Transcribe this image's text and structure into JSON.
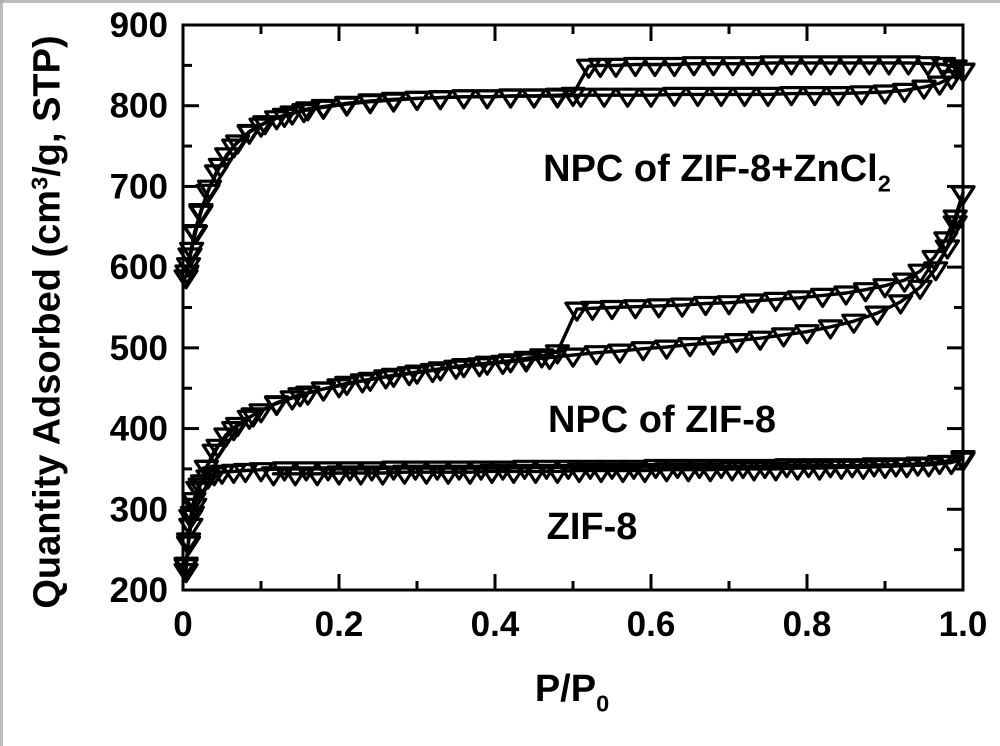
{
  "figure": {
    "background": "#ffffff",
    "ink_color": "#000000",
    "edge_artifact_color": "#a6a6a6"
  },
  "chart_data": {
    "type": "line",
    "title": "",
    "xlabel": "P/P0",
    "ylabel": "Quantity Adsorbed (cm3/g, STP)",
    "axis_titles": {
      "x_main": "P/P",
      "x_sub": "0",
      "y_prefix": "Quantity Adsorbed (cm",
      "y_sup": "3",
      "y_suffix": "/g, STP)"
    },
    "xlim": [
      0,
      1.0
    ],
    "ylim": [
      200,
      900
    ],
    "grid": false,
    "legend_position": "none (inline text annotations)",
    "marker": "open-triangle-down",
    "x_major_ticks": [
      0,
      0.2,
      0.4,
      0.6,
      0.8,
      1.0
    ],
    "x_major_labels": [
      "0",
      "0.2",
      "0.4",
      "0.6",
      "0.8",
      "1.0"
    ],
    "x_minor_ticks": [
      0.1,
      0.3,
      0.5,
      0.7,
      0.9
    ],
    "y_major_ticks": [
      200,
      300,
      400,
      500,
      600,
      700,
      800,
      900
    ],
    "y_major_labels": [
      "200",
      "300",
      "400",
      "500",
      "600",
      "700",
      "800",
      "900"
    ],
    "y_minor_ticks": [
      250,
      350,
      450,
      550,
      650,
      750,
      850
    ],
    "annotations": {
      "top": {
        "main": "NPC of ZIF-8+ZnCl",
        "sub": "2"
      },
      "middle": {
        "main": "NPC of ZIF-8",
        "sub": ""
      },
      "bottom": {
        "main": "ZIF-8",
        "sub": ""
      }
    },
    "series": [
      {
        "id": "npc-zncl2-adsorption",
        "name": "NPC of ZIF-8+ZnCl2 adsorption",
        "points": [
          [
            0.004,
            588
          ],
          [
            0.007,
            603
          ],
          [
            0.011,
            622
          ],
          [
            0.016,
            643
          ],
          [
            0.023,
            668
          ],
          [
            0.032,
            694
          ],
          [
            0.043,
            718
          ],
          [
            0.056,
            739
          ],
          [
            0.07,
            755
          ],
          [
            0.085,
            767
          ],
          [
            0.1,
            776
          ],
          [
            0.12,
            785
          ],
          [
            0.14,
            791
          ],
          [
            0.16,
            796
          ],
          [
            0.18,
            799
          ],
          [
            0.21,
            803
          ],
          [
            0.24,
            806
          ],
          [
            0.27,
            808
          ],
          [
            0.3,
            809
          ],
          [
            0.33,
            810
          ],
          [
            0.36,
            811
          ],
          [
            0.39,
            811
          ],
          [
            0.42,
            812
          ],
          [
            0.45,
            812
          ],
          [
            0.48,
            812
          ],
          [
            0.51,
            813
          ],
          [
            0.54,
            813
          ],
          [
            0.57,
            813
          ],
          [
            0.6,
            813
          ],
          [
            0.63,
            814
          ],
          [
            0.66,
            814
          ],
          [
            0.69,
            814
          ],
          [
            0.72,
            814
          ],
          [
            0.75,
            814
          ],
          [
            0.78,
            815
          ],
          [
            0.81,
            815
          ],
          [
            0.84,
            815
          ],
          [
            0.87,
            816
          ],
          [
            0.9,
            817
          ],
          [
            0.925,
            819
          ],
          [
            0.95,
            823
          ],
          [
            0.97,
            828
          ],
          [
            0.985,
            835
          ],
          [
            1.0,
            844
          ]
        ]
      },
      {
        "id": "npc-zncl2-desorption",
        "name": "NPC of ZIF-8+ZnCl2 desorption",
        "points": [
          [
            1.0,
            844
          ],
          [
            0.99,
            848
          ],
          [
            0.975,
            851
          ],
          [
            0.955,
            852
          ],
          [
            0.93,
            853
          ],
          [
            0.905,
            853
          ],
          [
            0.88,
            853
          ],
          [
            0.855,
            853
          ],
          [
            0.83,
            853
          ],
          [
            0.805,
            853
          ],
          [
            0.78,
            853
          ],
          [
            0.755,
            853
          ],
          [
            0.73,
            852
          ],
          [
            0.705,
            852
          ],
          [
            0.68,
            852
          ],
          [
            0.655,
            852
          ],
          [
            0.63,
            851
          ],
          [
            0.605,
            851
          ],
          [
            0.58,
            851
          ],
          [
            0.555,
            850
          ],
          [
            0.535,
            850
          ],
          [
            0.52,
            849
          ],
          [
            0.5,
            814
          ],
          [
            0.48,
            813
          ],
          [
            0.45,
            812
          ],
          [
            0.42,
            812
          ],
          [
            0.39,
            811
          ],
          [
            0.36,
            811
          ],
          [
            0.33,
            810
          ],
          [
            0.3,
            809
          ],
          [
            0.27,
            807
          ],
          [
            0.24,
            805
          ],
          [
            0.21,
            802
          ],
          [
            0.18,
            798
          ],
          [
            0.155,
            794
          ],
          [
            0.13,
            788
          ],
          [
            0.105,
            779
          ],
          [
            0.085,
            768
          ],
          [
            0.065,
            750
          ],
          [
            0.048,
            726
          ],
          [
            0.034,
            699
          ],
          [
            0.023,
            670
          ],
          [
            0.015,
            644
          ],
          [
            0.009,
            615
          ],
          [
            0.005,
            594
          ]
        ]
      },
      {
        "id": "npc-zif8-adsorption",
        "name": "NPC of ZIF-8 adsorption",
        "points": [
          [
            0.004,
            230
          ],
          [
            0.007,
            258
          ],
          [
            0.01,
            280
          ],
          [
            0.015,
            305
          ],
          [
            0.022,
            330
          ],
          [
            0.03,
            352
          ],
          [
            0.04,
            372
          ],
          [
            0.055,
            392
          ],
          [
            0.07,
            405
          ],
          [
            0.085,
            414
          ],
          [
            0.1,
            422
          ],
          [
            0.12,
            431
          ],
          [
            0.14,
            438
          ],
          [
            0.16,
            444
          ],
          [
            0.18,
            449
          ],
          [
            0.2,
            453
          ],
          [
            0.23,
            459
          ],
          [
            0.26,
            464
          ],
          [
            0.29,
            468
          ],
          [
            0.32,
            472
          ],
          [
            0.35,
            476
          ],
          [
            0.38,
            479
          ],
          [
            0.41,
            482
          ],
          [
            0.44,
            485
          ],
          [
            0.47,
            488
          ],
          [
            0.5,
            491
          ],
          [
            0.53,
            494
          ],
          [
            0.56,
            496
          ],
          [
            0.59,
            499
          ],
          [
            0.62,
            501
          ],
          [
            0.65,
            504
          ],
          [
            0.68,
            506
          ],
          [
            0.71,
            509
          ],
          [
            0.74,
            512
          ],
          [
            0.77,
            516
          ],
          [
            0.8,
            520
          ],
          [
            0.83,
            526
          ],
          [
            0.86,
            533
          ],
          [
            0.89,
            543
          ],
          [
            0.92,
            557
          ],
          [
            0.945,
            575
          ],
          [
            0.965,
            598
          ],
          [
            0.98,
            625
          ],
          [
            0.99,
            655
          ],
          [
            1.0,
            692
          ]
        ]
      },
      {
        "id": "npc-zif8-desorption",
        "name": "NPC of ZIF-8 desorption",
        "points": [
          [
            1.0,
            692
          ],
          [
            0.99,
            662
          ],
          [
            0.978,
            635
          ],
          [
            0.963,
            612
          ],
          [
            0.945,
            595
          ],
          [
            0.925,
            584
          ],
          [
            0.9,
            577
          ],
          [
            0.875,
            572
          ],
          [
            0.85,
            568
          ],
          [
            0.82,
            565
          ],
          [
            0.79,
            562
          ],
          [
            0.76,
            560
          ],
          [
            0.73,
            558
          ],
          [
            0.7,
            556
          ],
          [
            0.67,
            555
          ],
          [
            0.64,
            553
          ],
          [
            0.61,
            552
          ],
          [
            0.58,
            551
          ],
          [
            0.55,
            550
          ],
          [
            0.525,
            549
          ],
          [
            0.505,
            548
          ],
          [
            0.48,
            495
          ],
          [
            0.46,
            490
          ],
          [
            0.44,
            487
          ],
          [
            0.42,
            484
          ],
          [
            0.39,
            481
          ],
          [
            0.36,
            478
          ],
          [
            0.33,
            474
          ],
          [
            0.3,
            470
          ],
          [
            0.27,
            466
          ],
          [
            0.24,
            461
          ],
          [
            0.21,
            456
          ],
          [
            0.18,
            449
          ],
          [
            0.15,
            442
          ],
          [
            0.12,
            432
          ],
          [
            0.09,
            417
          ],
          [
            0.065,
            400
          ],
          [
            0.045,
            378
          ],
          [
            0.03,
            352
          ],
          [
            0.02,
            325
          ],
          [
            0.012,
            295
          ],
          [
            0.007,
            262
          ],
          [
            0.004,
            232
          ]
        ]
      },
      {
        "id": "zif8-adsorption",
        "name": "ZIF-8 adsorption",
        "points": [
          [
            0.004,
            224
          ],
          [
            0.007,
            262
          ],
          [
            0.01,
            291
          ],
          [
            0.014,
            312
          ],
          [
            0.019,
            326
          ],
          [
            0.025,
            334
          ],
          [
            0.032,
            340
          ],
          [
            0.04,
            344
          ],
          [
            0.05,
            346
          ],
          [
            0.065,
            347
          ],
          [
            0.08,
            348
          ],
          [
            0.1,
            349
          ],
          [
            0.13,
            350
          ],
          [
            0.158,
            350
          ],
          [
            0.186,
            350
          ],
          [
            0.214,
            350
          ],
          [
            0.242,
            350
          ],
          [
            0.27,
            351
          ],
          [
            0.298,
            351
          ],
          [
            0.326,
            351
          ],
          [
            0.354,
            351
          ],
          [
            0.382,
            351
          ],
          [
            0.41,
            351
          ],
          [
            0.438,
            352
          ],
          [
            0.466,
            352
          ],
          [
            0.494,
            352
          ],
          [
            0.522,
            352
          ],
          [
            0.55,
            352
          ],
          [
            0.578,
            352
          ],
          [
            0.606,
            353
          ],
          [
            0.634,
            353
          ],
          [
            0.662,
            353
          ],
          [
            0.69,
            353
          ],
          [
            0.718,
            353
          ],
          [
            0.746,
            353
          ],
          [
            0.774,
            354
          ],
          [
            0.802,
            354
          ],
          [
            0.83,
            354
          ],
          [
            0.858,
            354
          ],
          [
            0.886,
            355
          ],
          [
            0.914,
            355
          ],
          [
            0.942,
            356
          ],
          [
            0.97,
            358
          ],
          [
            1.0,
            364
          ]
        ]
      },
      {
        "id": "zif8-desorption",
        "name": "ZIF-8 desorption",
        "points": [
          [
            1.0,
            362
          ],
          [
            0.985,
            358
          ],
          [
            0.956,
            355
          ],
          [
            0.928,
            354
          ],
          [
            0.9,
            353
          ],
          [
            0.872,
            352
          ],
          [
            0.844,
            352
          ],
          [
            0.816,
            351
          ],
          [
            0.788,
            351
          ],
          [
            0.76,
            350
          ],
          [
            0.732,
            350
          ],
          [
            0.704,
            350
          ],
          [
            0.676,
            349
          ],
          [
            0.648,
            349
          ],
          [
            0.62,
            349
          ],
          [
            0.592,
            348
          ],
          [
            0.564,
            348
          ],
          [
            0.536,
            348
          ],
          [
            0.508,
            348
          ],
          [
            0.48,
            347
          ],
          [
            0.452,
            347
          ],
          [
            0.424,
            347
          ],
          [
            0.396,
            347
          ],
          [
            0.368,
            346
          ],
          [
            0.34,
            346
          ],
          [
            0.312,
            346
          ],
          [
            0.284,
            346
          ],
          [
            0.256,
            345
          ],
          [
            0.228,
            345
          ],
          [
            0.2,
            345
          ],
          [
            0.172,
            344
          ],
          [
            0.144,
            344
          ],
          [
            0.116,
            344
          ]
        ]
      }
    ]
  }
}
